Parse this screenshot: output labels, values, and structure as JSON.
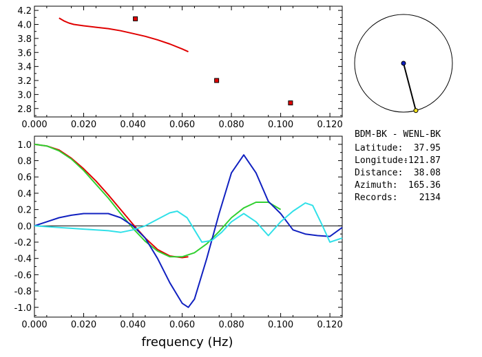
{
  "info_panel": {
    "station_pair": "BDM-BK  -  WENL-BK",
    "rows": [
      {
        "label": "Latitude:",
        "value": "37.95"
      },
      {
        "label": "Longitude:",
        "value": "-121.87"
      },
      {
        "label": "Distance:",
        "value": "38.08"
      },
      {
        "label": "Azimuth:",
        "value": "165.36"
      },
      {
        "label": "Records:",
        "value": "2134"
      }
    ]
  },
  "colors": {
    "red": "#e00000",
    "blue": "#1020c0",
    "green": "#30d030",
    "cyan": "#30e0e8",
    "black": "#000000",
    "marker_fill": "#e00000",
    "azimuth_end": "#f0e020"
  },
  "chart_data": [
    {
      "type": "line",
      "xlim": [
        0.0,
        0.125
      ],
      "ylim": [
        2.68,
        4.26
      ],
      "xticks": [
        "0.000",
        "0.020",
        "0.040",
        "0.060",
        "0.080",
        "0.100",
        "0.120"
      ],
      "xtick_values": [
        0.0,
        0.02,
        0.04,
        0.06,
        0.08,
        0.1,
        0.12
      ],
      "yticks": [
        "2.8",
        "3.0",
        "3.2",
        "3.4",
        "3.6",
        "3.8",
        "4.0",
        "4.2"
      ],
      "ytick_values": [
        2.8,
        3.0,
        3.2,
        3.4,
        3.6,
        3.8,
        4.0,
        4.2
      ],
      "series": [
        {
          "color": "red",
          "kind": "line",
          "x": [
            0.01,
            0.012,
            0.014,
            0.016,
            0.018,
            0.02,
            0.025,
            0.03,
            0.035,
            0.04,
            0.045,
            0.05,
            0.055,
            0.06,
            0.0625
          ],
          "y": [
            4.09,
            4.05,
            4.02,
            4.0,
            3.99,
            3.98,
            3.96,
            3.94,
            3.91,
            3.87,
            3.83,
            3.78,
            3.72,
            3.65,
            3.61
          ]
        },
        {
          "color": "red",
          "kind": "markers",
          "x": [
            0.041,
            0.074,
            0.104
          ],
          "y": [
            4.08,
            3.2,
            2.88
          ]
        }
      ]
    },
    {
      "type": "line",
      "xlim": [
        0.0,
        0.125
      ],
      "ylim": [
        -1.12,
        1.1
      ],
      "xticks": [
        "0.000",
        "0.020",
        "0.040",
        "0.060",
        "0.080",
        "0.100",
        "0.120"
      ],
      "xtick_values": [
        0.0,
        0.02,
        0.04,
        0.06,
        0.08,
        0.1,
        0.12
      ],
      "yticks": [
        "1.0",
        "0.8",
        "0.6",
        "0.4",
        "0.2",
        "0.0",
        "-0.2",
        "-0.4",
        "-0.6",
        "-0.8",
        "-1.0"
      ],
      "ytick_values": [
        1.0,
        0.8,
        0.6,
        0.4,
        0.2,
        0.0,
        -0.2,
        -0.4,
        -0.6,
        -0.8,
        -1.0
      ],
      "xlabel": "frequency (Hz)",
      "zero_line": true,
      "series": [
        {
          "color": "red",
          "x": [
            0.0,
            0.005,
            0.01,
            0.015,
            0.02,
            0.025,
            0.03,
            0.035,
            0.04,
            0.045,
            0.05,
            0.055,
            0.06,
            0.0625
          ],
          "y": [
            1.0,
            0.98,
            0.93,
            0.83,
            0.7,
            0.55,
            0.38,
            0.2,
            0.02,
            -0.15,
            -0.29,
            -0.37,
            -0.39,
            -0.38
          ]
        },
        {
          "color": "green",
          "x": [
            0.0,
            0.005,
            0.01,
            0.015,
            0.02,
            0.025,
            0.03,
            0.035,
            0.04,
            0.045,
            0.05,
            0.055,
            0.06,
            0.065,
            0.07,
            0.075,
            0.08,
            0.085,
            0.09,
            0.095,
            0.1
          ],
          "y": [
            1.0,
            0.98,
            0.92,
            0.82,
            0.68,
            0.51,
            0.34,
            0.15,
            -0.03,
            -0.19,
            -0.31,
            -0.38,
            -0.38,
            -0.33,
            -0.22,
            -0.07,
            0.1,
            0.22,
            0.29,
            0.29,
            0.2
          ]
        },
        {
          "color": "blue",
          "x": [
            0.0,
            0.005,
            0.01,
            0.015,
            0.02,
            0.025,
            0.03,
            0.035,
            0.04,
            0.045,
            0.05,
            0.055,
            0.06,
            0.0625,
            0.065,
            0.07,
            0.075,
            0.08,
            0.085,
            0.09,
            0.095,
            0.1,
            0.105,
            0.11,
            0.115,
            0.12,
            0.125
          ],
          "y": [
            0.0,
            0.05,
            0.1,
            0.13,
            0.15,
            0.15,
            0.15,
            0.1,
            0.0,
            -0.15,
            -0.4,
            -0.7,
            -0.95,
            -1.0,
            -0.9,
            -0.4,
            0.15,
            0.65,
            0.87,
            0.65,
            0.3,
            0.15,
            -0.05,
            -0.1,
            -0.12,
            -0.13,
            -0.02
          ]
        },
        {
          "color": "cyan",
          "x": [
            0.0,
            0.005,
            0.01,
            0.015,
            0.02,
            0.025,
            0.03,
            0.035,
            0.04,
            0.045,
            0.05,
            0.055,
            0.058,
            0.062,
            0.065,
            0.068,
            0.072,
            0.076,
            0.08,
            0.085,
            0.09,
            0.095,
            0.1,
            0.105,
            0.11,
            0.113,
            0.117,
            0.12,
            0.125
          ],
          "y": [
            0.0,
            -0.01,
            -0.02,
            -0.03,
            -0.04,
            -0.05,
            -0.06,
            -0.08,
            -0.05,
            0.0,
            0.08,
            0.16,
            0.18,
            0.1,
            -0.05,
            -0.2,
            -0.18,
            -0.08,
            0.05,
            0.15,
            0.05,
            -0.12,
            0.05,
            0.18,
            0.28,
            0.25,
            0.0,
            -0.2,
            -0.15
          ]
        }
      ]
    }
  ],
  "azimuth_inset": {
    "azimuth_deg": 165.36
  }
}
